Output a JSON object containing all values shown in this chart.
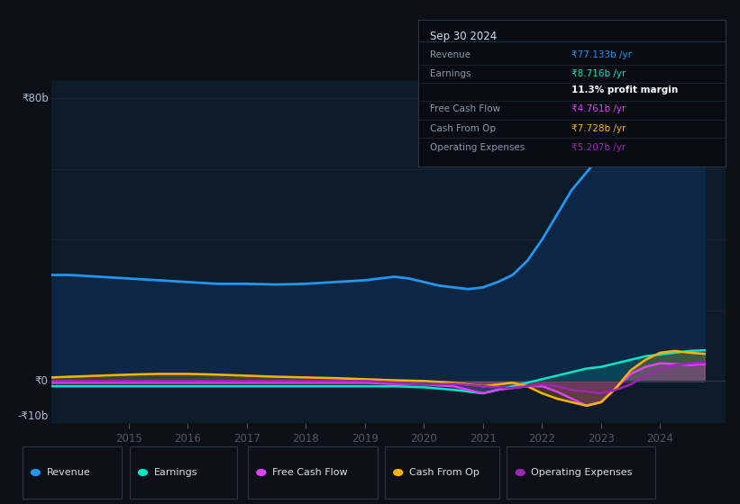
{
  "background_color": "#0d1117",
  "plot_bg_color": "#0d1b2a",
  "ylim": [
    -12,
    85
  ],
  "xlim": [
    2013.7,
    2025.1
  ],
  "x_ticks": [
    2015,
    2016,
    2017,
    2018,
    2019,
    2020,
    2021,
    2022,
    2023,
    2024
  ],
  "grid_color": "#1a2535",
  "y_gridlines": [
    80,
    60,
    40,
    20,
    0
  ],
  "y_label_top": "₹80b",
  "y_label_zero": "₹0",
  "y_label_bottom": "-₹10b",
  "series": {
    "Revenue": {
      "color": "#2196f3",
      "fill_color": "#0d2744",
      "x": [
        2013.7,
        2014.0,
        2014.5,
        2015.0,
        2015.5,
        2016.0,
        2016.5,
        2017.0,
        2017.5,
        2018.0,
        2018.5,
        2019.0,
        2019.25,
        2019.5,
        2019.75,
        2020.0,
        2020.25,
        2020.5,
        2020.75,
        2021.0,
        2021.25,
        2021.5,
        2021.75,
        2022.0,
        2022.25,
        2022.5,
        2022.75,
        2023.0,
        2023.25,
        2023.5,
        2023.75,
        2024.0,
        2024.25,
        2024.5,
        2024.75
      ],
      "y": [
        30,
        30,
        29.5,
        29,
        28.5,
        28,
        27.5,
        27.5,
        27.3,
        27.5,
        28,
        28.5,
        29,
        29.5,
        29,
        28,
        27,
        26.5,
        26,
        26.5,
        28,
        30,
        34,
        40,
        47,
        54,
        59,
        64,
        66,
        67,
        70,
        72,
        74,
        76.5,
        77
      ]
    },
    "Earnings": {
      "color": "#00e5cc",
      "x": [
        2013.7,
        2014.0,
        2014.5,
        2015.0,
        2015.5,
        2016.0,
        2016.5,
        2017.0,
        2017.5,
        2018.0,
        2018.5,
        2019.0,
        2019.5,
        2020.0,
        2020.5,
        2021.0,
        2021.25,
        2021.5,
        2021.75,
        2022.0,
        2022.25,
        2022.5,
        2022.75,
        2023.0,
        2023.25,
        2023.5,
        2023.75,
        2024.0,
        2024.25,
        2024.5,
        2024.75
      ],
      "y": [
        -1.5,
        -1.5,
        -1.5,
        -1.5,
        -1.5,
        -1.5,
        -1.5,
        -1.5,
        -1.5,
        -1.5,
        -1.5,
        -1.5,
        -1.5,
        -1.8,
        -2.5,
        -3.5,
        -2.5,
        -1.5,
        -0.5,
        0.5,
        1.5,
        2.5,
        3.5,
        4,
        5,
        6,
        7,
        7.5,
        8,
        8.5,
        8.7
      ]
    },
    "Free Cash Flow": {
      "color": "#e040fb",
      "x": [
        2013.7,
        2014.0,
        2014.5,
        2015.0,
        2015.5,
        2016.0,
        2016.5,
        2017.0,
        2017.5,
        2018.0,
        2018.5,
        2019.0,
        2019.5,
        2020.0,
        2020.5,
        2021.0,
        2021.25,
        2021.5,
        2021.75,
        2022.0,
        2022.25,
        2022.5,
        2022.75,
        2023.0,
        2023.25,
        2023.5,
        2023.75,
        2024.0,
        2024.25,
        2024.5,
        2024.75
      ],
      "y": [
        -0.5,
        -0.5,
        -0.5,
        -0.5,
        -0.5,
        -0.5,
        -0.5,
        -0.5,
        -0.5,
        -0.5,
        -0.5,
        -0.5,
        -0.8,
        -1,
        -1.5,
        -3.5,
        -2.5,
        -2,
        -1.5,
        -1.5,
        -3,
        -5,
        -7,
        -6,
        -2,
        2,
        4,
        5,
        4.8,
        4.5,
        4.8
      ]
    },
    "Cash From Op": {
      "color": "#ffb300",
      "x": [
        2013.7,
        2014.0,
        2014.5,
        2015.0,
        2015.5,
        2016.0,
        2016.5,
        2017.0,
        2017.5,
        2018.0,
        2018.5,
        2019.0,
        2019.5,
        2020.0,
        2020.5,
        2021.0,
        2021.25,
        2021.5,
        2021.75,
        2022.0,
        2022.25,
        2022.5,
        2022.75,
        2023.0,
        2023.25,
        2023.5,
        2023.75,
        2024.0,
        2024.25,
        2024.5,
        2024.75
      ],
      "y": [
        1,
        1.2,
        1.5,
        1.8,
        2,
        2,
        1.8,
        1.5,
        1.2,
        1,
        0.8,
        0.5,
        0.2,
        0,
        -0.5,
        -1.5,
        -1.0,
        -0.5,
        -1.5,
        -3.5,
        -5,
        -6,
        -7,
        -6,
        -2,
        3,
        6,
        8,
        8.5,
        8,
        7.7
      ]
    },
    "Operating Expenses": {
      "color": "#9c27b0",
      "x": [
        2013.7,
        2014.0,
        2014.5,
        2015.0,
        2015.5,
        2016.0,
        2016.5,
        2017.0,
        2017.5,
        2018.0,
        2018.5,
        2019.0,
        2019.5,
        2020.0,
        2020.5,
        2021.0,
        2021.25,
        2021.5,
        2021.75,
        2022.0,
        2022.25,
        2022.5,
        2022.75,
        2023.0,
        2023.25,
        2023.5,
        2023.75,
        2024.0,
        2024.25,
        2024.5,
        2024.75
      ],
      "y": [
        0,
        0,
        0,
        0,
        0,
        0,
        0,
        0,
        0,
        0,
        0,
        0,
        -0.5,
        -1,
        -0.8,
        -1.5,
        -1.8,
        -2,
        -1.5,
        -1,
        -1.5,
        -2.5,
        -3,
        -3.5,
        -2.5,
        -1,
        1.5,
        3.5,
        4.5,
        5,
        5.2
      ]
    }
  },
  "info_box": {
    "title": "Sep 30 2024",
    "rows": [
      {
        "label": "Revenue",
        "value": "₹77.133b /yr",
        "value_color": "#2196f3"
      },
      {
        "label": "Earnings",
        "value": "₹8.716b /yr",
        "value_color": "#00e5cc"
      },
      {
        "label": "",
        "value": "11.3% profit margin",
        "value_color": "#ffffff",
        "bold": true
      },
      {
        "label": "Free Cash Flow",
        "value": "₹4.761b /yr",
        "value_color": "#e040fb"
      },
      {
        "label": "Cash From Op",
        "value": "₹7.728b /yr",
        "value_color": "#ffb300"
      },
      {
        "label": "Operating Expenses",
        "value": "₹5.207b /yr",
        "value_color": "#9c27b0"
      }
    ]
  },
  "legend": [
    {
      "label": "Revenue",
      "color": "#2196f3"
    },
    {
      "label": "Earnings",
      "color": "#00e5cc"
    },
    {
      "label": "Free Cash Flow",
      "color": "#e040fb"
    },
    {
      "label": "Cash From Op",
      "color": "#ffb300"
    },
    {
      "label": "Operating Expenses",
      "color": "#9c27b0"
    }
  ]
}
